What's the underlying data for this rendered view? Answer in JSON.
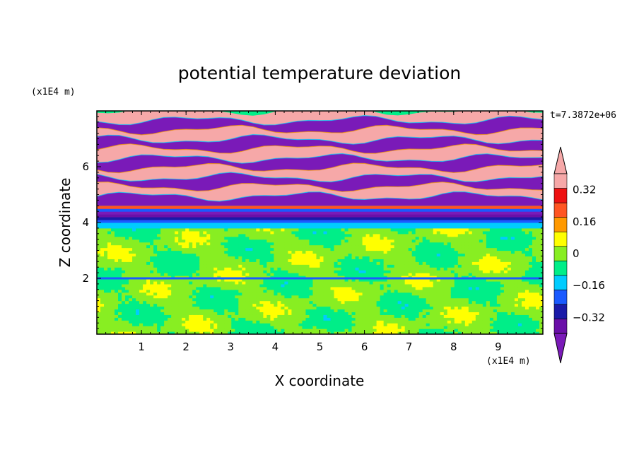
{
  "chart_data": {
    "type": "heatmap",
    "title": "potential temperature deviation",
    "xlabel": "X coordinate",
    "ylabel": "Z coordinate",
    "x_unit_label": "(x1E4 m)",
    "y_unit_label": "(x1E4 m)",
    "time_label": "t=7.3872e+06",
    "xlim": [
      0,
      10
    ],
    "ylim": [
      0,
      8
    ],
    "xticks": [
      "1",
      "2",
      "3",
      "4",
      "5",
      "6",
      "7",
      "8",
      "9"
    ],
    "yticks": [
      "2",
      "4",
      "6"
    ],
    "x_tick_values": [
      1,
      2,
      3,
      4,
      5,
      6,
      7,
      8,
      9
    ],
    "y_tick_values": [
      2,
      4,
      6
    ],
    "colorbar": {
      "levels": [
        -0.4,
        -0.32,
        -0.24,
        -0.16,
        -0.08,
        0,
        0.08,
        0.16,
        0.24,
        0.32,
        0.4
      ],
      "tick_labels": [
        "0.32",
        "0.16",
        "0",
        "−0.16",
        "−0.32"
      ],
      "tick_values": [
        0.32,
        0.16,
        0,
        -0.16,
        -0.32
      ],
      "colors": [
        "#6a0fa8",
        "#1a1aa8",
        "#1a5aff",
        "#00ccff",
        "#00ee88",
        "#88ee22",
        "#ffff00",
        "#ff9900",
        "#ff5522",
        "#ee1111",
        "#f6a8a8"
      ],
      "under_color": "#7a1ab8",
      "over_color": "#f6a8a8",
      "extend": "both"
    },
    "regions": {
      "lower_layer_z": [
        0,
        3.8
      ],
      "lower_layer_value": 0.02,
      "transition_z": [
        3.8,
        4.6
      ],
      "upper_layer_z": [
        4.6,
        8
      ],
      "upper_layer_values": [
        -0.45,
        0.45
      ],
      "thin_band_z": 2.0
    }
  }
}
